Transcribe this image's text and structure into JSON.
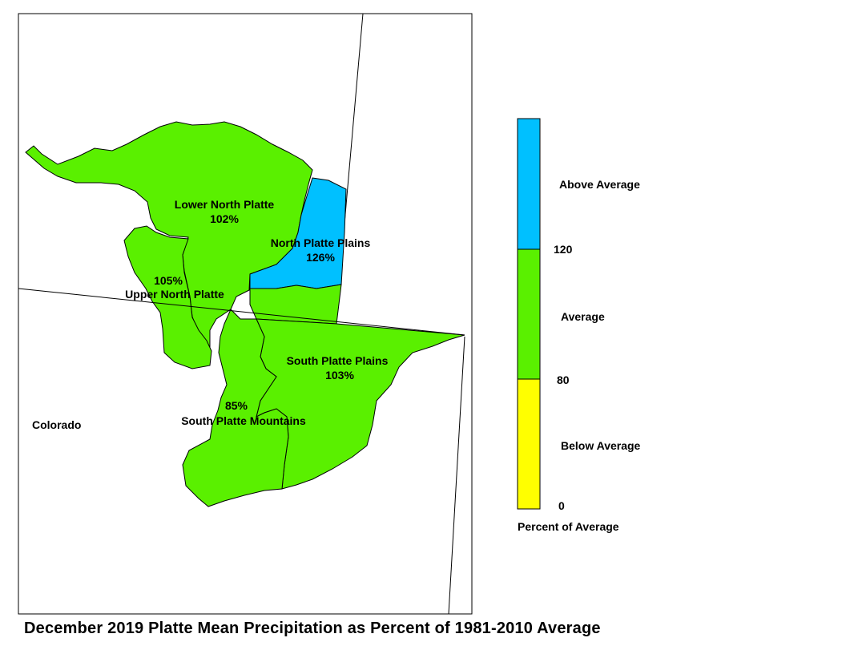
{
  "title": "December 2019 Platte Mean Precipitation as Percent of 1981-2010 Average",
  "state_label": "Colorado",
  "colors": {
    "above": "#00c0ff",
    "average": "#5af000",
    "below": "#ffff00",
    "border": "#000000"
  },
  "regions": [
    {
      "name": "Lower North Platte",
      "value": "102%",
      "category": "average"
    },
    {
      "name": "North Platte Plains",
      "value": "126%",
      "category": "above"
    },
    {
      "name": "Upper North Platte",
      "value": "105%",
      "category": "average"
    },
    {
      "name": "South Platte Plains",
      "value": "103%",
      "category": "average"
    },
    {
      "name": "South Platte Mountains",
      "value": "85%",
      "category": "average"
    }
  ],
  "legend": {
    "title": "Percent of Average",
    "bins": [
      {
        "label": "Above Average",
        "color": "#00c0ff"
      },
      {
        "label": "Average",
        "color": "#5af000"
      },
      {
        "label": "Below Average",
        "color": "#ffff00"
      }
    ],
    "breaks": [
      "120",
      "80",
      "0"
    ]
  }
}
